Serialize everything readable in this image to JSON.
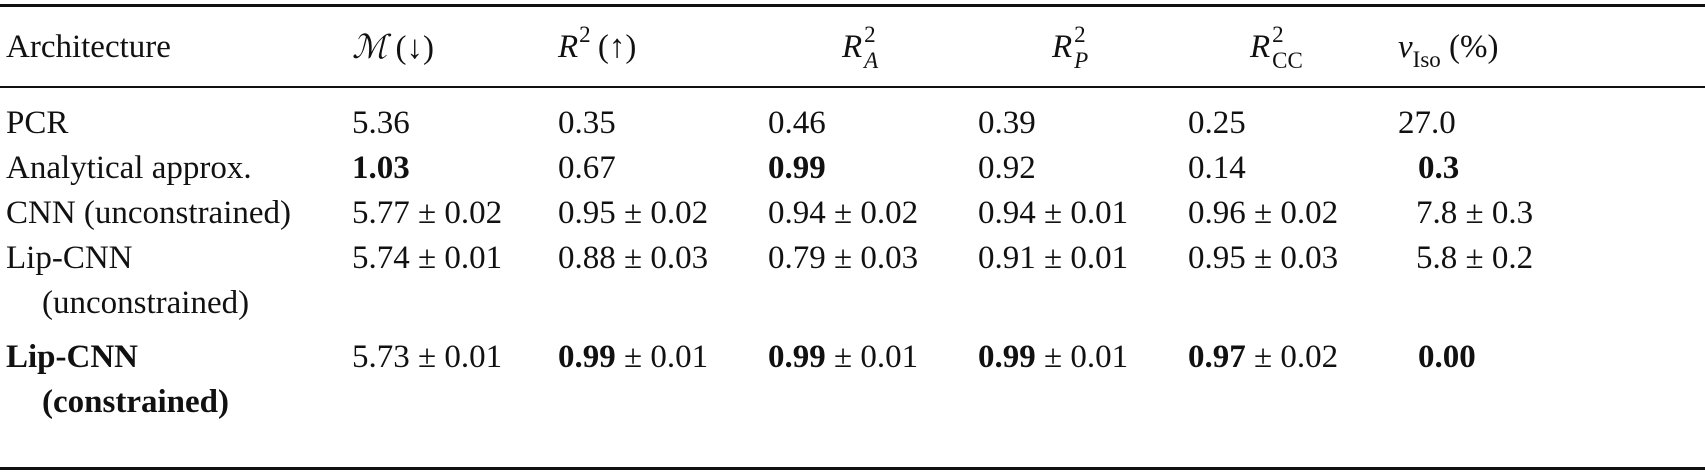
{
  "table": {
    "header": {
      "architecture": "Architecture",
      "m_symbol": "ℳ",
      "m_arrow": "(↓)",
      "r2_base": "R",
      "r2_exp": "2",
      "r2_arrow": "(↑)",
      "ra_base": "R",
      "ra_exp": "2",
      "ra_sub": "A",
      "rp_base": "R",
      "rp_exp": "2",
      "rp_sub": "P",
      "rcc_base": "R",
      "rcc_exp": "2",
      "rcc_sub": "CC",
      "viso_base": "v",
      "viso_sub": "Iso",
      "viso_unit": "(%)"
    },
    "pm": "±",
    "rows": [
      {
        "arch": "PCR",
        "m": "5.36",
        "r2": "0.35",
        "ra": "0.46",
        "rp": "0.39",
        "rcc": "0.25",
        "viso": "27.0"
      },
      {
        "arch": "Analytical approx.",
        "m": "1.03",
        "r2": "0.67",
        "ra": "0.99",
        "rp": "0.92",
        "rcc": "0.14",
        "viso": "0.3"
      },
      {
        "arch": "CNN (unconstrained)",
        "m": "5.77",
        "m_err": "0.02",
        "r2": "0.95",
        "r2_err": "0.02",
        "ra": "0.94",
        "ra_err": "0.02",
        "rp": "0.94",
        "rp_err": "0.01",
        "rcc": "0.96",
        "rcc_err": "0.02",
        "viso": "7.8",
        "viso_err": "0.3"
      },
      {
        "arch_line1": "Lip-CNN",
        "arch_line2": "(unconstrained)",
        "m": "5.74",
        "m_err": "0.01",
        "r2": "0.88",
        "r2_err": "0.03",
        "ra": "0.79",
        "ra_err": "0.03",
        "rp": "0.91",
        "rp_err": "0.01",
        "rcc": "0.95",
        "rcc_err": "0.03",
        "viso": "5.8",
        "viso_err": "0.2"
      },
      {
        "arch_line1": "Lip-CNN",
        "arch_line2": "(constrained)",
        "m": "5.73",
        "m_err": "0.01",
        "r2": "0.99",
        "r2_err": "0.01",
        "ra": "0.99",
        "ra_err": "0.01",
        "rp": "0.99",
        "rp_err": "0.01",
        "rcc": "0.97",
        "rcc_err": "0.02",
        "viso": "0.00"
      }
    ]
  }
}
